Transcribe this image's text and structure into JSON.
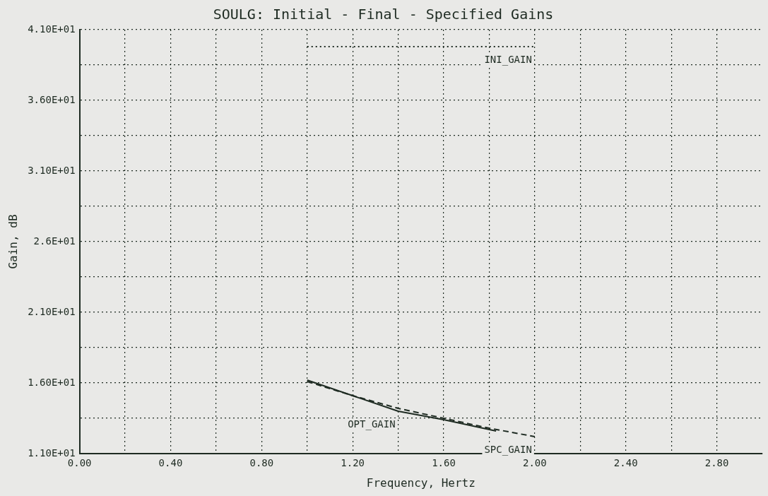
{
  "chart_data": {
    "type": "line",
    "title": "SOULG: Initial - Final - Specified Gains",
    "xlabel": "Frequency, Hertz",
    "ylabel": "Gain, dB",
    "xlim": [
      0,
      3.0
    ],
    "xticks": [
      {
        "value": 0,
        "label": "0.00"
      },
      {
        "value": 0.4,
        "label": "0.40"
      },
      {
        "value": 0.8,
        "label": "0.80"
      },
      {
        "value": 1.2,
        "label": "1.20"
      },
      {
        "value": 1.6,
        "label": "1.60"
      },
      {
        "value": 2.0,
        "label": "2.00"
      },
      {
        "value": 2.4,
        "label": "2.40"
      },
      {
        "value": 2.8,
        "label": "2.80"
      }
    ],
    "ylim": [
      11,
      41
    ],
    "yticks": [
      {
        "value": 11,
        "label": "1.10E+01"
      },
      {
        "value": 16,
        "label": "1.60E+01"
      },
      {
        "value": 21,
        "label": "2.10E+01"
      },
      {
        "value": 26,
        "label": "2.6E+01"
      },
      {
        "value": 31,
        "label": "3.10E+01"
      },
      {
        "value": 36,
        "label": "3.60E+01"
      },
      {
        "value": 41,
        "label": "4.10E+01"
      }
    ],
    "grid": true,
    "legend": false,
    "marker": "none",
    "series": [
      {
        "name": "INI_GAIN",
        "color": "#1e2b22",
        "line_style": "dotted",
        "x": [
          1.0,
          2.0
        ],
        "values": [
          39.8,
          39.8
        ]
      },
      {
        "name": "OPT_GAIN",
        "color": "#1e2b22",
        "line_style": "solid",
        "x": [
          1.0,
          1.2,
          1.4,
          1.6,
          1.83
        ],
        "values": [
          16.2,
          15.1,
          14.0,
          13.4,
          12.6
        ]
      },
      {
        "name": "SPC_GAIN",
        "color": "#1e2b22",
        "line_style": "dashed",
        "x": [
          1.0,
          1.2,
          1.4,
          1.6,
          1.8,
          2.0
        ],
        "values": [
          16.1,
          15.1,
          14.2,
          13.5,
          12.8,
          12.2
        ]
      }
    ]
  }
}
